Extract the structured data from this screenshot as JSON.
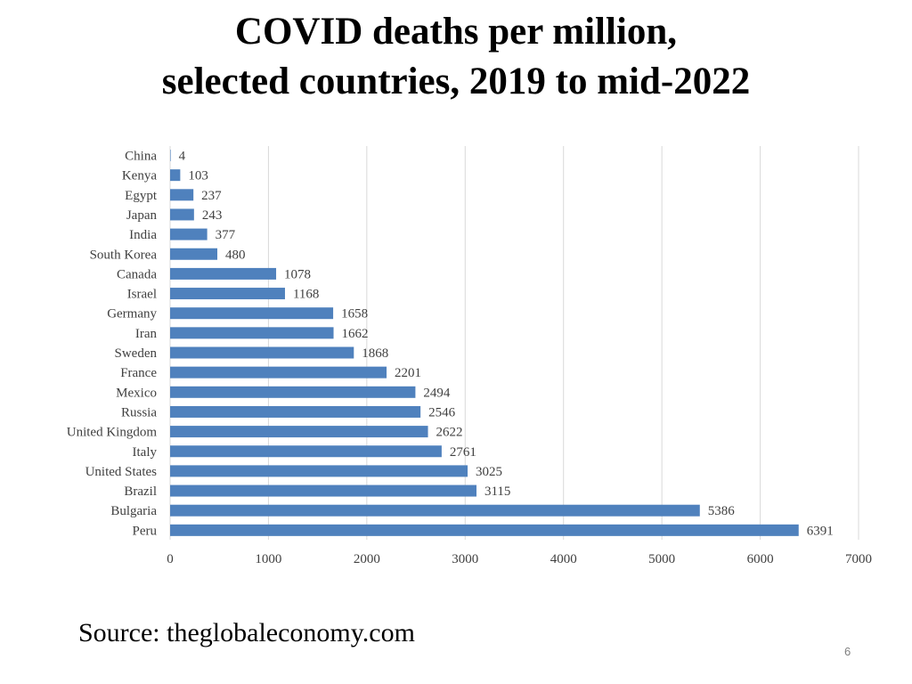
{
  "slide": {
    "title_line1": "COVID deaths per million,",
    "title_line2": "selected countries, 2019 to mid-2022",
    "source": "Source: theglobaleconomy.com",
    "page_number": "6"
  },
  "colors": {
    "bar": "#4f81bd",
    "grid": "#d9d9d9",
    "text": "#404040"
  },
  "chart_data": {
    "type": "bar",
    "orientation": "horizontal",
    "title": "",
    "xlabel": "",
    "ylabel": "",
    "xlim": [
      0,
      7000
    ],
    "x_ticks": [
      0,
      1000,
      2000,
      3000,
      4000,
      5000,
      6000,
      7000
    ],
    "grid": "vertical",
    "legend": "none",
    "categories": [
      "China",
      "Kenya",
      "Egypt",
      "Japan",
      "India",
      "South Korea",
      "Canada",
      "Israel",
      "Germany",
      "Iran",
      "Sweden",
      "France",
      "Mexico",
      "Russia",
      "United Kingdom",
      "Italy",
      "United States",
      "Brazil",
      "Bulgaria",
      "Peru"
    ],
    "values": [
      4,
      103,
      237,
      243,
      377,
      480,
      1078,
      1168,
      1658,
      1662,
      1868,
      2201,
      2494,
      2546,
      2622,
      2761,
      3025,
      3115,
      5386,
      6391
    ]
  }
}
